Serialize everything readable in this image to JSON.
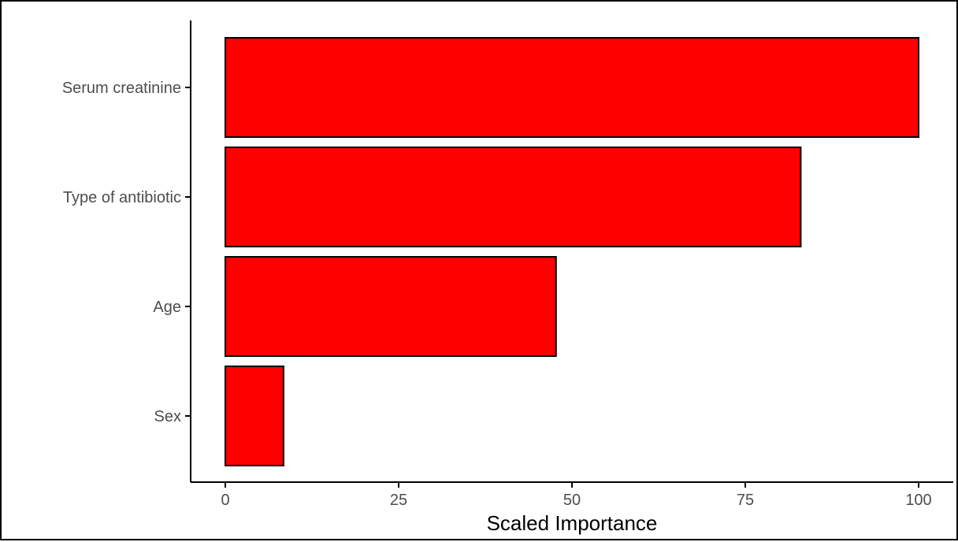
{
  "chart_data": {
    "type": "bar",
    "orientation": "horizontal",
    "categories": [
      "Serum creatinine",
      "Type of antibiotic",
      "Age",
      "Sex"
    ],
    "values": [
      100,
      83,
      47.7,
      8.4
    ],
    "xlabel": "Scaled Importance",
    "ylabel": "",
    "xlim": [
      0,
      100
    ],
    "xticks": [
      "0",
      "25",
      "50",
      "75",
      "100"
    ],
    "grid": false,
    "legend": "none",
    "colors": {
      "bar_fill": "#ff0000",
      "bar_stroke": "#000000",
      "axis": "#000000",
      "tick_text": "#4d4d4d"
    }
  }
}
